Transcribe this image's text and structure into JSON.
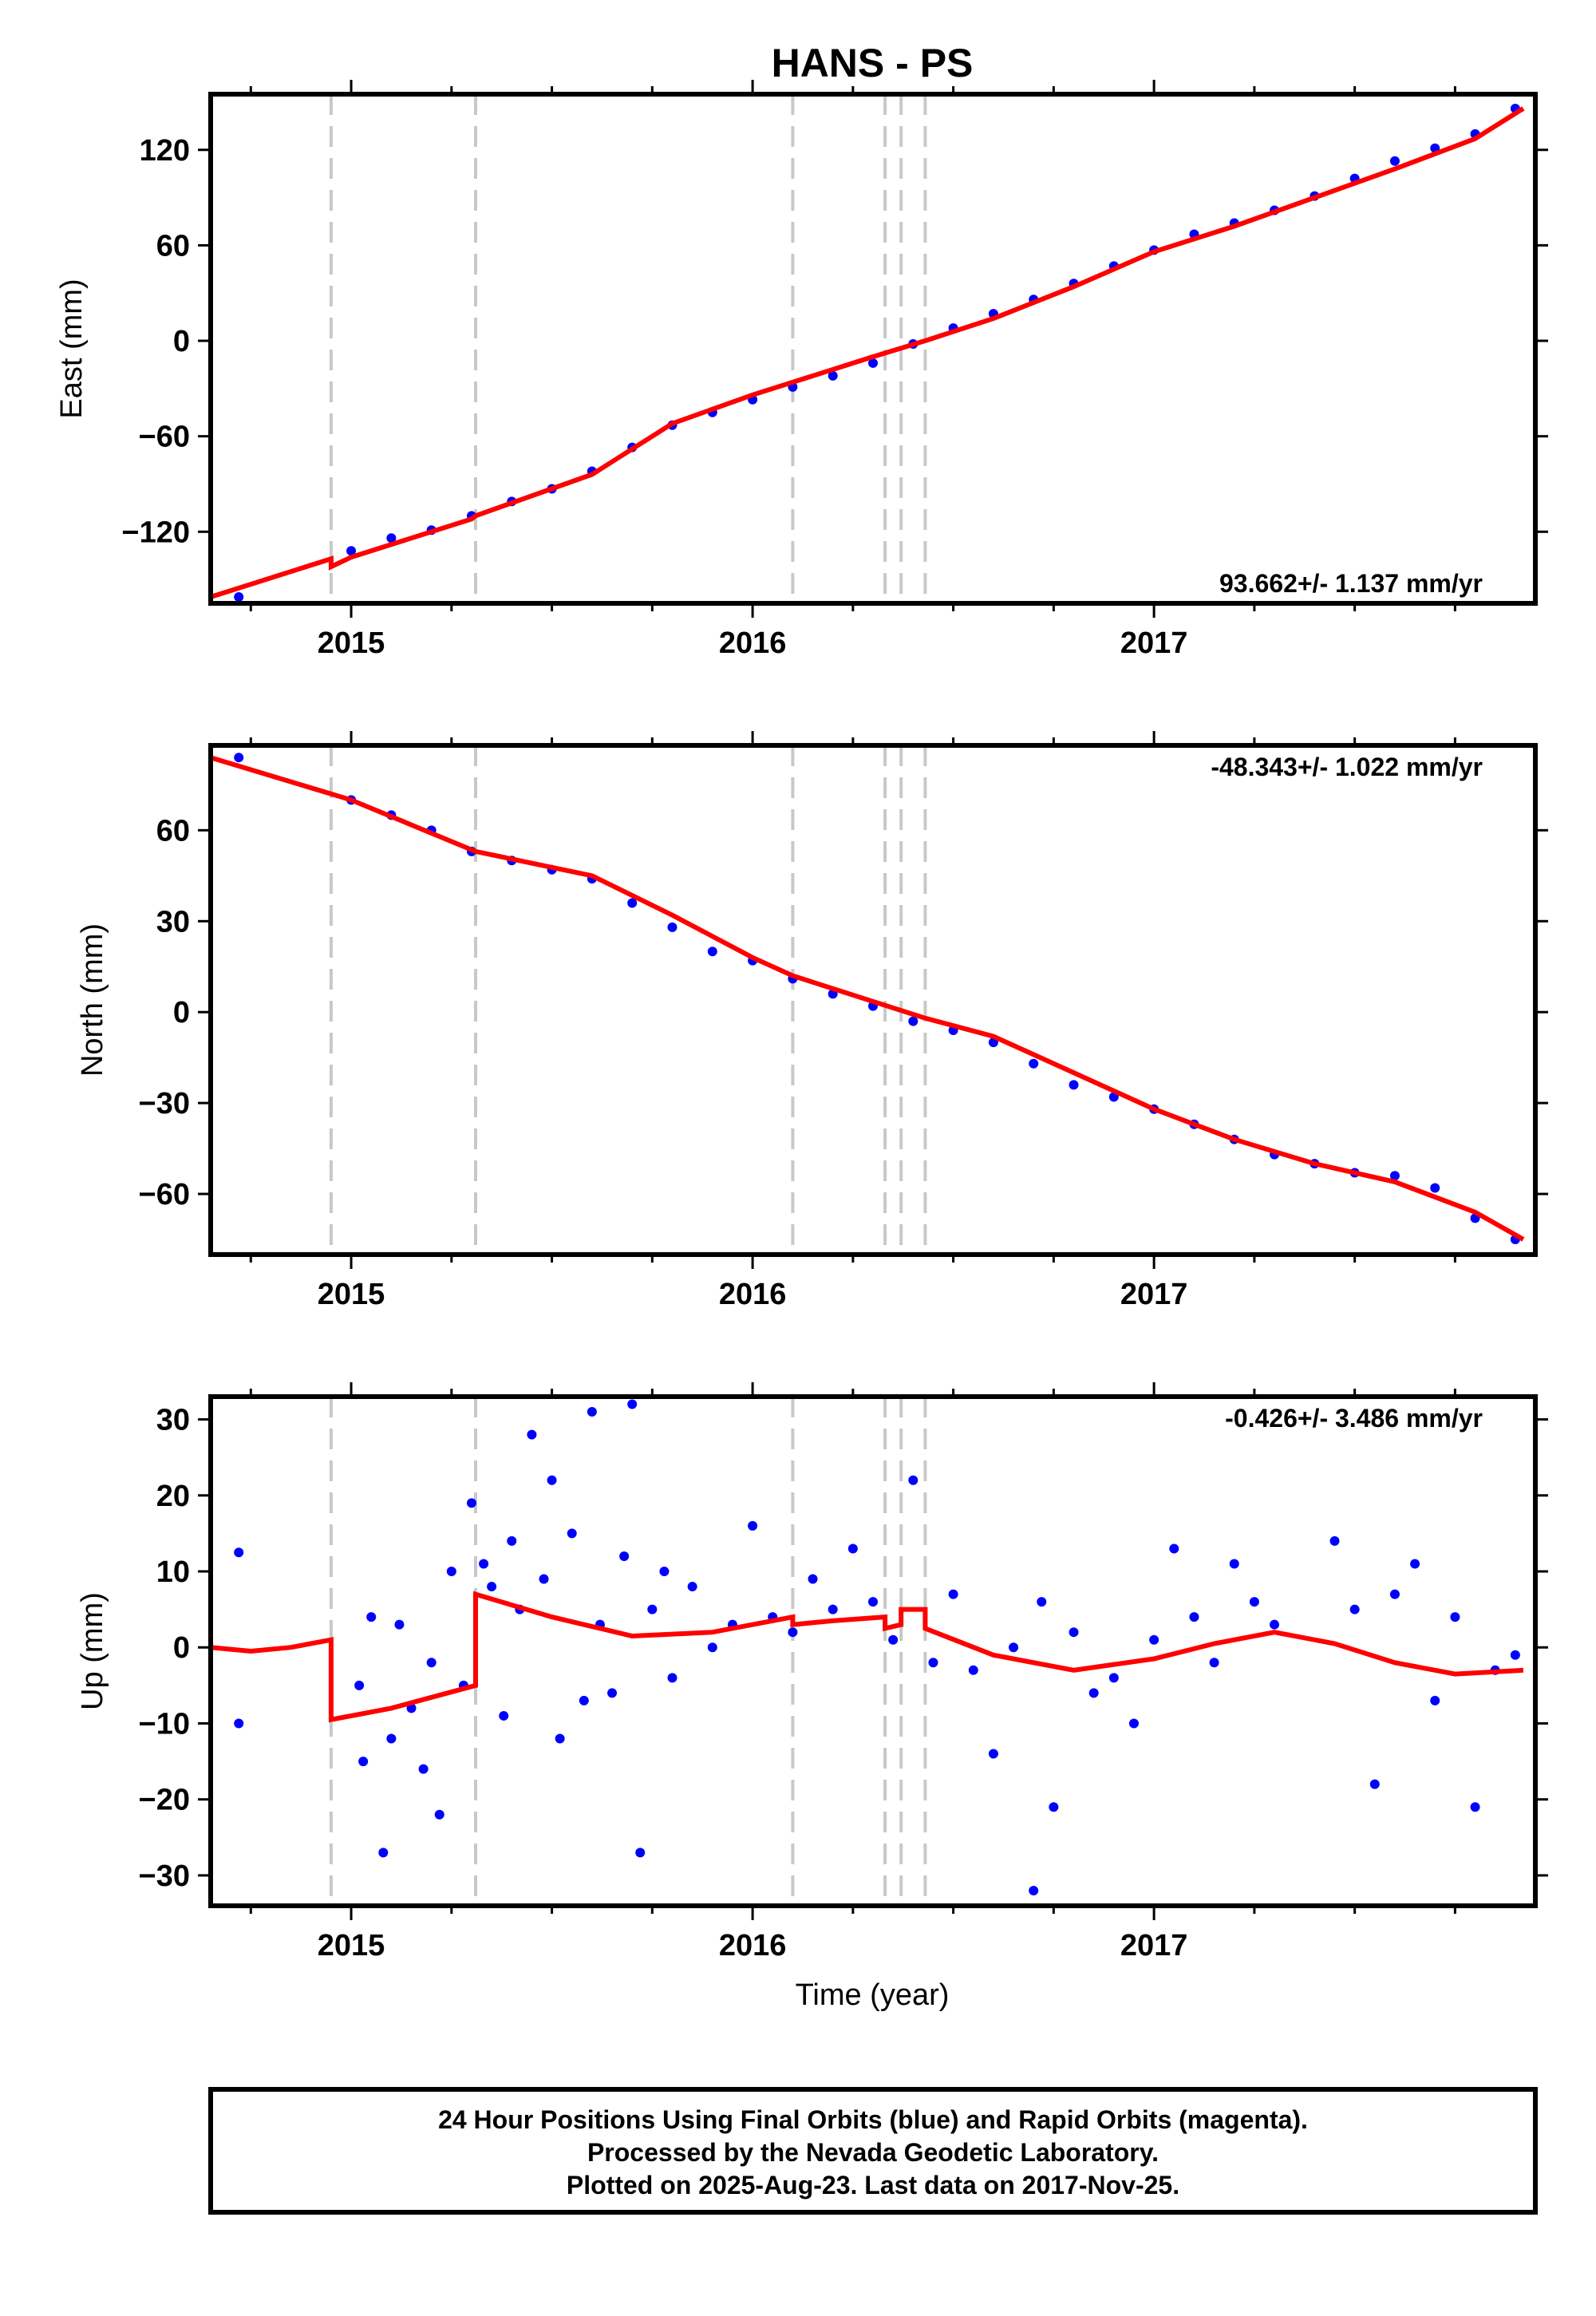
{
  "title": "HANS - PS",
  "colors": {
    "points": "#0000ff",
    "model": "#ff0000",
    "frame": "#000000",
    "event_line": "#c8c8c8"
  },
  "x_axis": {
    "label": "Time (year)",
    "range": [
      2014.65,
      2017.95
    ],
    "major_ticks": [
      2015,
      2016,
      2017
    ],
    "tick_labels": [
      "2015",
      "2016",
      "2017"
    ]
  },
  "event_lines": [
    2014.95,
    2015.31,
    2016.1,
    2016.33,
    2016.37,
    2016.43
  ],
  "footer": {
    "line1": "24 Hour Positions Using Final Orbits (blue) and Rapid Orbits (magenta).",
    "line2": "Processed by the Nevada Geodetic Laboratory.",
    "line3": "Plotted on 2025-Aug-23. Last data on 2017-Nov-25."
  },
  "chart_data": [
    {
      "type": "scatter",
      "component": "east",
      "ylabel": "East (mm)",
      "ylim": [
        -165,
        155
      ],
      "yticks": [
        -120,
        -60,
        0,
        60,
        120
      ],
      "ytick_labels": [
        "−120",
        "−60",
        "0",
        "60",
        "120"
      ],
      "rate_label": "93.662+/- 1.137 mm/yr",
      "series": [
        {
          "values_note": "",
          "x": [
            2014.72,
            2015.0,
            2015.1,
            2015.2,
            2015.3,
            2015.4,
            2015.5,
            2015.6,
            2015.7,
            2015.8,
            2015.9,
            2016.0,
            2016.1,
            2016.2,
            2016.3,
            2016.4,
            2016.5,
            2016.6,
            2016.7,
            2016.8,
            2016.9,
            2017.0,
            2017.1,
            2017.2,
            2017.3,
            2017.4,
            2017.5,
            2017.6,
            2017.7,
            2017.8,
            2017.9
          ],
          "y": [
            -161,
            -132,
            -124,
            -119,
            -110,
            -101,
            -93,
            -82,
            -67,
            -53,
            -45,
            -37,
            -29,
            -22,
            -14,
            -2,
            8,
            17,
            26,
            36,
            47,
            57,
            67,
            74,
            82,
            91,
            102,
            113,
            121,
            130,
            146
          ]
        }
      ],
      "model": {
        "x": [
          2014.65,
          2014.95,
          2014.95,
          2015.0,
          2015.3,
          2015.31,
          2015.6,
          2015.8,
          2016.0,
          2016.1,
          2016.3,
          2016.43,
          2016.6,
          2016.8,
          2017.0,
          2017.2,
          2017.4,
          2017.6,
          2017.8,
          2017.92
        ],
        "y": [
          -161,
          -137,
          -142,
          -136,
          -112,
          -110,
          -84,
          -52,
          -34,
          -26,
          -10,
          0,
          14,
          34,
          56,
          72,
          90,
          108,
          127,
          146
        ]
      }
    },
    {
      "type": "scatter",
      "component": "north",
      "ylabel": "North (mm)",
      "ylim": [
        -80,
        88
      ],
      "yticks": [
        -60,
        -30,
        0,
        30,
        60
      ],
      "ytick_labels": [
        "−60",
        "−30",
        "0",
        "30",
        "60"
      ],
      "rate_label": "-48.343+/- 1.022 mm/yr",
      "series": [
        {
          "x": [
            2014.72,
            2015.0,
            2015.1,
            2015.2,
            2015.3,
            2015.4,
            2015.5,
            2015.6,
            2015.7,
            2015.8,
            2015.9,
            2016.0,
            2016.1,
            2016.2,
            2016.3,
            2016.4,
            2016.5,
            2016.6,
            2016.7,
            2016.8,
            2016.9,
            2017.0,
            2017.1,
            2017.2,
            2017.3,
            2017.4,
            2017.5,
            2017.6,
            2017.7,
            2017.8,
            2017.9
          ],
          "y": [
            84,
            70,
            65,
            60,
            53,
            50,
            47,
            44,
            36,
            28,
            20,
            17,
            11,
            6,
            2,
            -3,
            -6,
            -10,
            -17,
            -24,
            -28,
            -32,
            -37,
            -42,
            -47,
            -50,
            -53,
            -54,
            -58,
            -68,
            -75
          ]
        }
      ],
      "model": {
        "x": [
          2014.65,
          2014.95,
          2015.0,
          2015.31,
          2015.6,
          2015.8,
          2016.0,
          2016.1,
          2016.43,
          2016.6,
          2016.8,
          2017.0,
          2017.2,
          2017.4,
          2017.6,
          2017.8,
          2017.92
        ],
        "y": [
          84,
          72,
          70,
          53,
          45,
          32,
          18,
          12,
          -2,
          -8,
          -20,
          -32,
          -42,
          -50,
          -56,
          -66,
          -75
        ]
      }
    },
    {
      "type": "scatter",
      "component": "up",
      "ylabel": "Up (mm)",
      "ylim": [
        -34,
        33
      ],
      "yticks": [
        -30,
        -20,
        -10,
        0,
        10,
        20,
        30
      ],
      "ytick_labels": [
        "−30",
        "−20",
        "−10",
        "0",
        "10",
        "20",
        "30"
      ],
      "rate_label": "-0.426+/- 3.486 mm/yr",
      "series": [
        {
          "x": [
            2014.72,
            2014.72,
            2015.02,
            2015.03,
            2015.05,
            2015.08,
            2015.1,
            2015.12,
            2015.15,
            2015.18,
            2015.2,
            2015.22,
            2015.25,
            2015.28,
            2015.3,
            2015.33,
            2015.35,
            2015.38,
            2015.4,
            2015.42,
            2015.45,
            2015.48,
            2015.5,
            2015.52,
            2015.55,
            2015.58,
            2015.6,
            2015.62,
            2015.65,
            2015.68,
            2015.7,
            2015.72,
            2015.75,
            2015.78,
            2015.8,
            2015.85,
            2015.9,
            2015.95,
            2016.0,
            2016.05,
            2016.1,
            2016.15,
            2016.2,
            2016.25,
            2016.3,
            2016.35,
            2016.4,
            2016.45,
            2016.5,
            2016.55,
            2016.6,
            2016.65,
            2016.7,
            2016.72,
            2016.75,
            2016.8,
            2016.85,
            2016.9,
            2016.95,
            2017.0,
            2017.05,
            2017.1,
            2017.15,
            2017.2,
            2017.25,
            2017.3,
            2017.45,
            2017.5,
            2017.55,
            2017.6,
            2017.65,
            2017.7,
            2017.75,
            2017.8,
            2017.85,
            2017.9
          ],
          "y": [
            12.5,
            -10,
            -5,
            -15,
            4,
            -27,
            -12,
            3,
            -8,
            -16,
            -2,
            -22,
            10,
            -5,
            19,
            11,
            8,
            -9,
            14,
            5,
            28,
            9,
            22,
            -12,
            15,
            -7,
            31,
            3,
            -6,
            12,
            32,
            -27,
            5,
            10,
            -4,
            8,
            0,
            3,
            16,
            4,
            2,
            9,
            5,
            13,
            6,
            1,
            22,
            -2,
            7,
            -3,
            -14,
            0,
            -32,
            6,
            -21,
            2,
            -6,
            -4,
            -10,
            1,
            13,
            4,
            -2,
            11,
            6,
            3,
            14,
            5,
            -18,
            7,
            11,
            -7,
            4,
            -21,
            -3,
            -1
          ]
        }
      ],
      "model": {
        "x": [
          2014.65,
          2014.75,
          2014.85,
          2014.95,
          2014.95,
          2015.1,
          2015.31,
          2015.31,
          2015.5,
          2015.7,
          2015.9,
          2016.1,
          2016.1,
          2016.2,
          2016.33,
          2016.33,
          2016.37,
          2016.37,
          2016.43,
          2016.43,
          2016.6,
          2016.8,
          2017.0,
          2017.15,
          2017.3,
          2017.45,
          2017.6,
          2017.75,
          2017.92
        ],
        "y": [
          0,
          -0.5,
          0,
          1,
          -9.5,
          -8,
          -5,
          7,
          4,
          1.5,
          2,
          4,
          3,
          3.5,
          4,
          2.5,
          3,
          5,
          5,
          2.5,
          -1,
          -3,
          -1.5,
          0.5,
          2,
          0.5,
          -2,
          -3.5,
          -3
        ]
      }
    }
  ]
}
